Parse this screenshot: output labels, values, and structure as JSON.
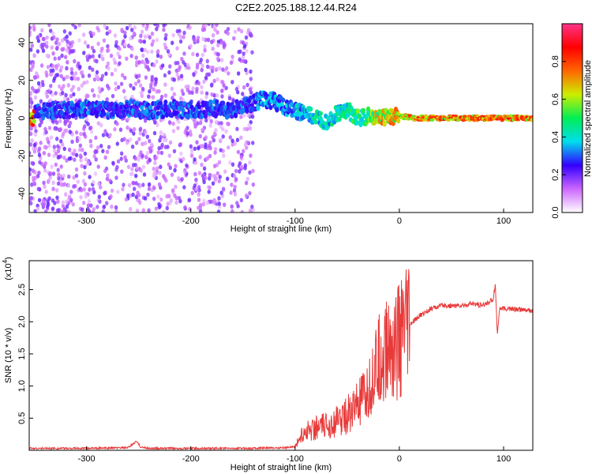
{
  "title": "C2E2.2025.188.12.44.R24",
  "chart_data": [
    {
      "type": "heatmap",
      "xlabel": "Height of straight line (km)",
      "ylabel": "Frequency (Hz)",
      "xlim": [
        -355,
        128
      ],
      "ylim": [
        -50,
        50
      ],
      "x_ticks": [
        -300,
        -200,
        -100,
        0,
        100
      ],
      "y_ticks": [
        -40,
        -20,
        0,
        20,
        40
      ],
      "colorbar": {
        "label": "Normalized spectral amplitude",
        "range": [
          0,
          1
        ],
        "ticks": [
          0.0,
          0.2,
          0.4,
          0.6,
          0.8
        ],
        "colors": [
          "#ffffff",
          "#cc66ff",
          "#3300ff",
          "#00ddee",
          "#00ee55",
          "#ccee00",
          "#ff6600",
          "#ff0000",
          "#ff3388"
        ]
      },
      "series": [
        {
          "x": [
            -350,
            -320,
            -300,
            -280,
            -260,
            -240,
            -220,
            -200,
            -180,
            -160,
            -140,
            -130,
            -120,
            -110,
            -100,
            -90,
            -80,
            -70,
            -60,
            -50,
            -40,
            -30,
            -20,
            -10,
            0,
            20,
            50,
            90,
            120
          ],
          "y": [
            4,
            4,
            5,
            4,
            5,
            4,
            5,
            4,
            5,
            4,
            8,
            10,
            9,
            6,
            4,
            2,
            0,
            -2,
            2,
            4,
            0,
            1,
            0,
            1,
            1,
            0,
            0,
            0,
            0
          ],
          "amplitude": [
            0.35,
            0.35,
            0.35,
            0.35,
            0.35,
            0.35,
            0.35,
            0.35,
            0.35,
            0.35,
            0.35,
            0.4,
            0.4,
            0.4,
            0.45,
            0.45,
            0.5,
            0.5,
            0.5,
            0.5,
            0.6,
            0.6,
            0.75,
            0.8,
            0.85,
            0.9,
            0.9,
            0.9,
            0.9
          ]
        }
      ]
    },
    {
      "type": "line",
      "xlabel": "Height of straight line (km)",
      "ylabel": "SNR (10 * v/v)",
      "y_multiplier": "(x10",
      "y_multiplier_exp": "4",
      "xlim": [
        -355,
        128
      ],
      "ylim": [
        0,
        2.95
      ],
      "x_ticks": [
        -300,
        -200,
        -100,
        0,
        100
      ],
      "y_ticks": [
        0.5,
        1.0,
        1.5,
        2.0,
        2.5
      ],
      "color": "#e83a3a",
      "series": [
        {
          "x": [
            -355,
            -300,
            -260,
            -252,
            -248,
            -240,
            -200,
            -150,
            -110,
            -100,
            -95,
            -90,
            -80,
            -70,
            -60,
            -50,
            -40,
            -30,
            -25,
            -20,
            -15,
            -10,
            -5,
            0,
            5,
            10,
            20,
            30,
            40,
            50,
            60,
            70,
            80,
            85,
            90,
            92,
            94,
            96,
            100,
            110,
            120,
            128
          ],
          "y": [
            0.03,
            0.03,
            0.04,
            0.14,
            0.05,
            0.03,
            0.03,
            0.03,
            0.04,
            0.06,
            0.2,
            0.3,
            0.35,
            0.38,
            0.45,
            0.55,
            0.7,
            0.85,
            1.2,
            1.35,
            1.5,
            1.6,
            1.65,
            1.7,
            1.8,
            1.95,
            2.1,
            2.2,
            2.25,
            2.25,
            2.25,
            2.28,
            2.25,
            2.3,
            2.35,
            2.6,
            1.8,
            2.2,
            2.2,
            2.2,
            2.18,
            2.17
          ]
        }
      ]
    }
  ]
}
